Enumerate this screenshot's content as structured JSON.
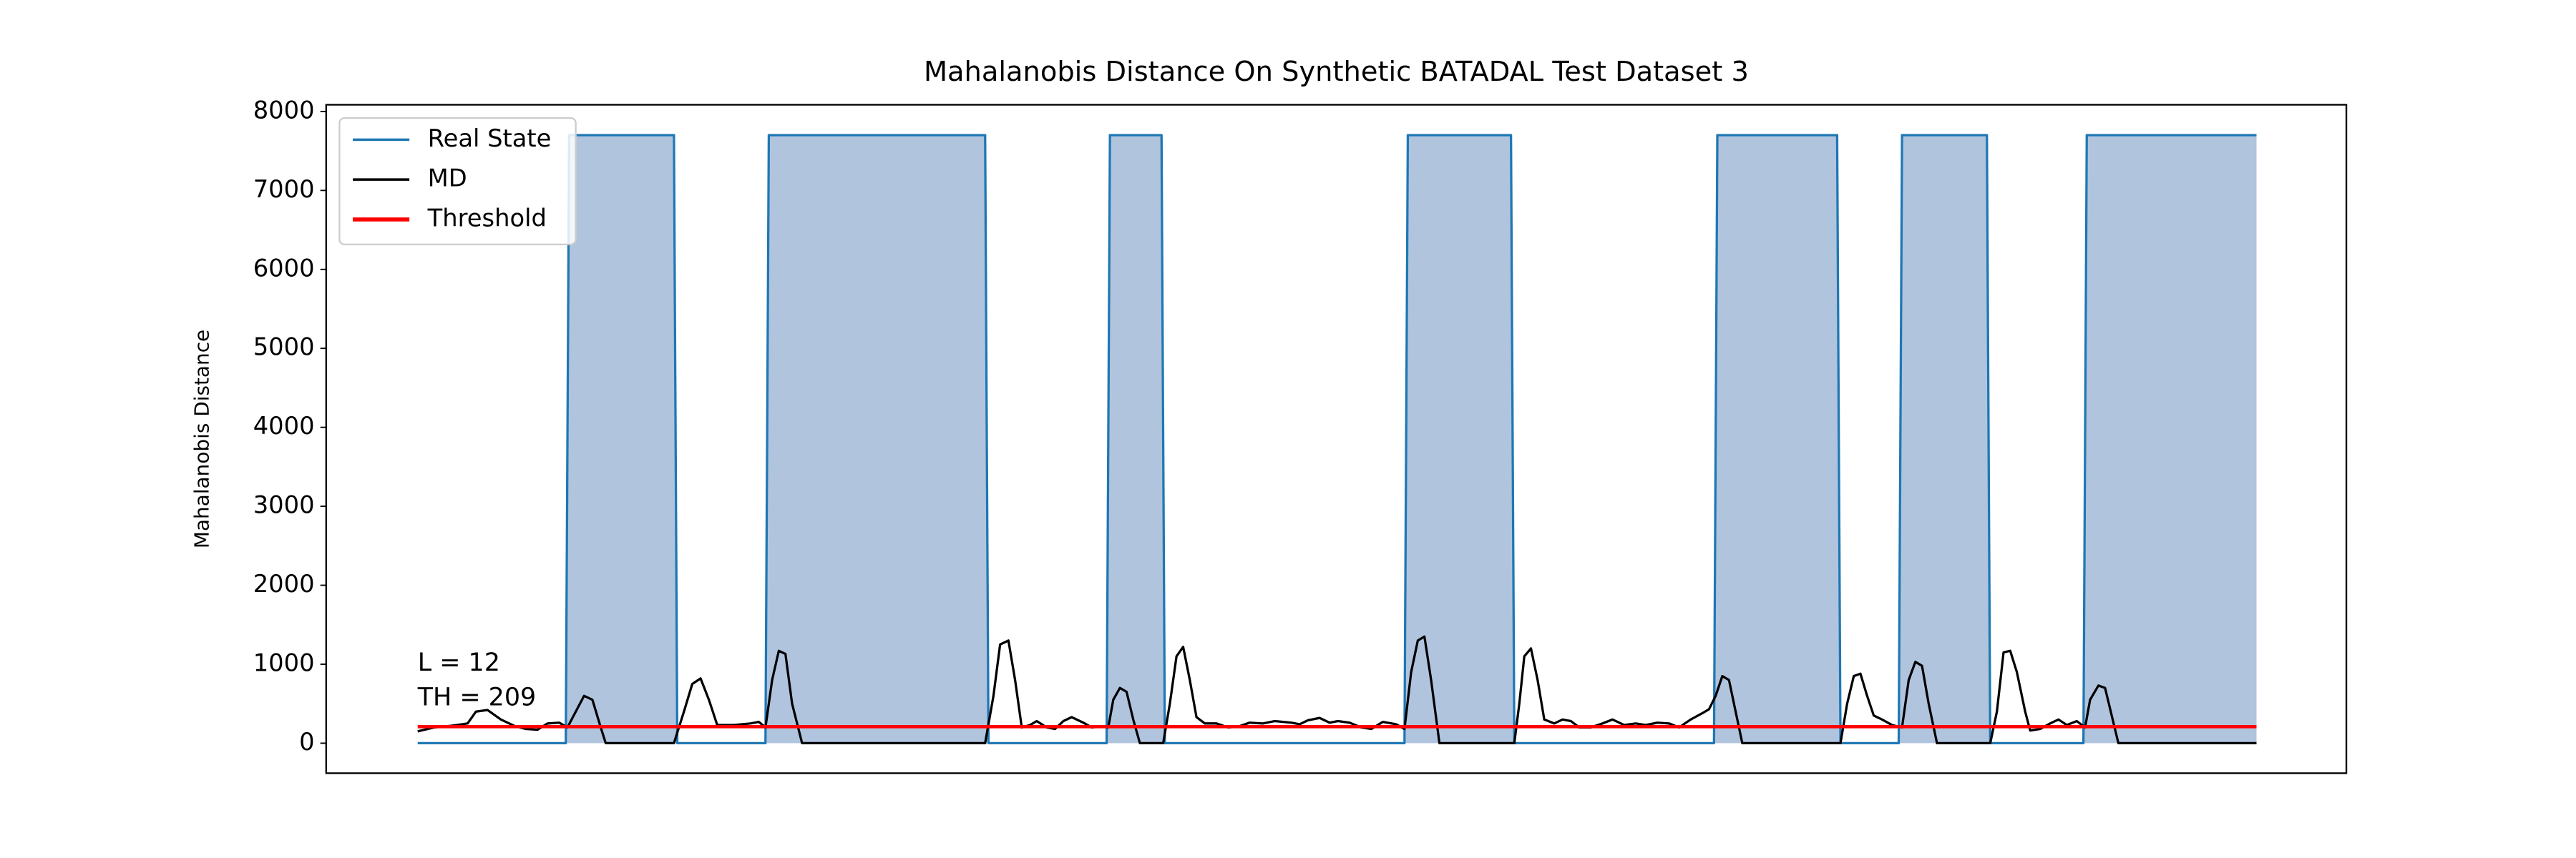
{
  "chart_data": {
    "type": "line",
    "title": "Mahalanobis Distance On Synthetic BATADAL Test Dataset 3",
    "ylabel": "Mahalanobis Distance",
    "xlim": [
      -55,
      1159
    ],
    "ylim": [
      -380,
      8085
    ],
    "yticks": [
      0,
      1000,
      2000,
      3000,
      4000,
      5000,
      6000,
      7000,
      8000
    ],
    "legend": "upper left",
    "annotations": [
      "L = 12",
      "TH = 209"
    ],
    "series": [
      {
        "name": "Real State",
        "color": "#1f77b4",
        "fill": "#b0c4de",
        "x": [
          0,
          89,
          91,
          154,
          156,
          209,
          211,
          341,
          343,
          414,
          416,
          447,
          449,
          593,
          595,
          657,
          659,
          779,
          781,
          853,
          855,
          890,
          892,
          943,
          945,
          1001,
          1003,
          1105
        ],
        "values": [
          0,
          0,
          7700,
          7700,
          0,
          0,
          7700,
          7700,
          0,
          0,
          7700,
          7700,
          0,
          0,
          7700,
          7700,
          0,
          0,
          7700,
          7700,
          0,
          0,
          7700,
          7700,
          0,
          0,
          7700,
          7700
        ]
      },
      {
        "name": "MD",
        "color": "#000000",
        "x": [
          0,
          10,
          20,
          30,
          35,
          42,
          50,
          58,
          65,
          72,
          78,
          85,
          90,
          95,
          100,
          105,
          110,
          113,
          154,
          160,
          165,
          170,
          175,
          180,
          190,
          200,
          205,
          209,
          213,
          217,
          221,
          225,
          231,
          341,
          346,
          350,
          355,
          359,
          363,
          368,
          372,
          378,
          383,
          388,
          393,
          400,
          405,
          410,
          415,
          418,
          422,
          426,
          430,
          434,
          448,
          452,
          456,
          460,
          464,
          468,
          473,
          480,
          487,
          493,
          500,
          508,
          515,
          525,
          530,
          535,
          542,
          548,
          553,
          560,
          567,
          573,
          580,
          588,
          593,
          597,
          601,
          605,
          609,
          614,
          659,
          662,
          665,
          669,
          673,
          677,
          683,
          688,
          693,
          698,
          705,
          712,
          718,
          725,
          732,
          738,
          745,
          752,
          758,
          765,
          772,
          776,
          780,
          784,
          788,
          792,
          796,
          855,
          859,
          863,
          867,
          871,
          875,
          880,
          886,
          892,
          896,
          900,
          904,
          908,
          913,
          945,
          949,
          953,
          957,
          961,
          966,
          969,
          975,
          981,
          986,
          991,
          997,
          1002,
          1005,
          1010,
          1014,
          1018,
          1022,
          1105
        ],
        "values": [
          150,
          200,
          220,
          250,
          400,
          420,
          300,
          220,
          180,
          170,
          250,
          260,
          200,
          400,
          600,
          550,
          200,
          0,
          0,
          400,
          750,
          820,
          550,
          230,
          230,
          250,
          270,
          200,
          800,
          1170,
          1130,
          500,
          0,
          0,
          600,
          1250,
          1300,
          800,
          200,
          230,
          280,
          200,
          180,
          280,
          330,
          260,
          200,
          210,
          200,
          550,
          700,
          650,
          300,
          0,
          0,
          500,
          1100,
          1220,
          800,
          330,
          250,
          250,
          200,
          210,
          260,
          250,
          280,
          260,
          240,
          290,
          320,
          260,
          280,
          260,
          200,
          180,
          270,
          240,
          180,
          900,
          1300,
          1350,
          800,
          0,
          0,
          500,
          1100,
          1200,
          800,
          300,
          250,
          300,
          280,
          200,
          200,
          250,
          300,
          230,
          250,
          230,
          260,
          250,
          200,
          300,
          380,
          430,
          600,
          850,
          800,
          400,
          0,
          0,
          500,
          850,
          880,
          600,
          350,
          300,
          230,
          200,
          800,
          1030,
          980,
          500,
          0,
          0,
          400,
          1150,
          1170,
          900,
          400,
          160,
          180,
          250,
          300,
          230,
          280,
          200,
          550,
          730,
          700,
          350,
          0,
          0
        ]
      },
      {
        "name": "Threshold",
        "color": "#ff0000",
        "x": [
          0,
          1105
        ],
        "values": [
          209,
          209
        ]
      }
    ]
  }
}
